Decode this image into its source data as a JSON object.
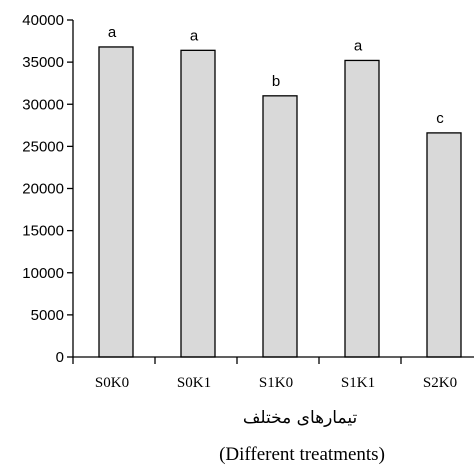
{
  "chart_data": {
    "type": "bar",
    "categories": [
      "S0K0",
      "S0K1",
      "S1K0",
      "S1K1",
      "S2K0"
    ],
    "values": [
      36800,
      36400,
      31000,
      35200,
      26600
    ],
    "significance_letters": [
      "a",
      "a",
      "b",
      "a",
      "c"
    ],
    "ylim": [
      0,
      40000
    ],
    "yticks": [
      0,
      5000,
      10000,
      15000,
      20000,
      25000,
      30000,
      35000,
      40000
    ],
    "ytick_labels": [
      "0",
      "5000",
      "10000",
      "15000",
      "20000",
      "25000",
      "30000",
      "35000",
      "40000"
    ],
    "xlabel_fa": "تیمارهای مختلف",
    "xlabel_en": "(Different treatments)",
    "bar_color": "#d9d9d9",
    "grid": false
  }
}
